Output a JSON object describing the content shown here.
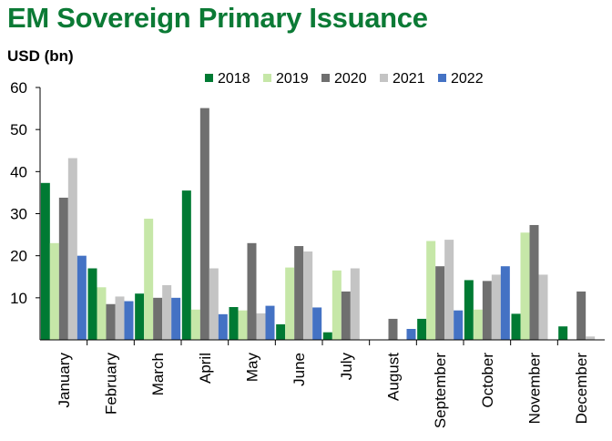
{
  "chart_data": {
    "type": "bar",
    "title": "EM Sovereign Primary Issuance",
    "ylabel": "USD (bn)",
    "xlabel": "",
    "ylim": [
      0,
      60
    ],
    "yticks": [
      10,
      20,
      30,
      40,
      50,
      60
    ],
    "categories": [
      "January",
      "February",
      "March",
      "April",
      "May",
      "June",
      "July",
      "August",
      "September",
      "October",
      "November",
      "December"
    ],
    "series": [
      {
        "name": "2018",
        "color": "#007a33",
        "values": [
          37.3,
          17,
          11,
          35.5,
          7.8,
          3.7,
          1.8,
          0,
          5,
          14.2,
          6.2,
          3.2
        ]
      },
      {
        "name": "2019",
        "color": "#c6e7a8",
        "values": [
          23,
          12.5,
          28.8,
          7.2,
          7,
          17.2,
          16.5,
          0,
          23.5,
          7.2,
          25.5,
          0
        ]
      },
      {
        "name": "2020",
        "color": "#6f6f6f",
        "values": [
          33.8,
          8.5,
          10,
          55.1,
          23,
          22.3,
          11.5,
          5,
          17.5,
          14,
          27.3,
          11.5
        ]
      },
      {
        "name": "2021",
        "color": "#c4c4c4",
        "values": [
          43.2,
          10.3,
          13,
          17,
          6.3,
          21,
          17,
          0,
          23.8,
          15.5,
          15.5,
          0.8
        ]
      },
      {
        "name": "2022",
        "color": "#4472c4",
        "values": [
          20,
          9.2,
          10,
          6.1,
          8.1,
          7.7,
          0,
          2.6,
          7,
          17.5,
          0,
          0
        ]
      }
    ]
  }
}
